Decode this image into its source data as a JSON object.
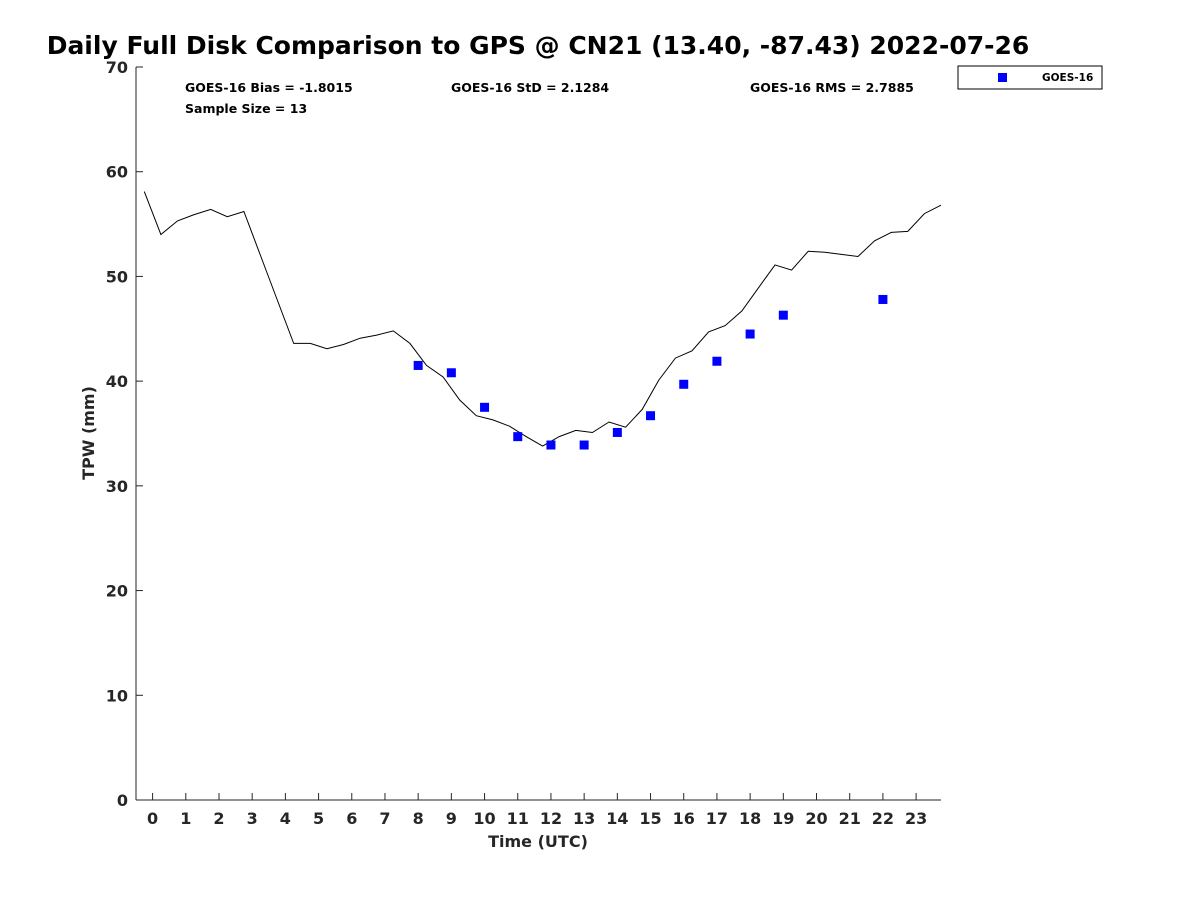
{
  "chart_data": {
    "type": "scatter",
    "title": "Daily Full Disk Comparison to GPS @ CN21 (13.40, -87.43) 2022-07-26",
    "xlabel": "Time (UTC)",
    "ylabel": "TPW (mm)",
    "xlim": [
      -0.5,
      23.75
    ],
    "ylim": [
      0,
      70
    ],
    "x_ticks": [
      0,
      1,
      2,
      3,
      4,
      5,
      6,
      7,
      8,
      9,
      10,
      11,
      12,
      13,
      14,
      15,
      16,
      17,
      18,
      19,
      20,
      21,
      22,
      23
    ],
    "y_ticks": [
      0,
      10,
      20,
      30,
      40,
      50,
      60,
      70
    ],
    "grid": false,
    "legend_position": "top-right, outside plot",
    "stats": {
      "bias": "GOES-16 Bias = -1.8015",
      "std": "GOES-16 StD = 2.1284",
      "rms": "GOES-16 RMS = 2.7885",
      "sample": "Sample Size = 13"
    },
    "series": [
      {
        "name": "GOES-16",
        "marker": "square",
        "color": "#0000ff",
        "x": [
          8,
          9,
          10,
          11,
          12,
          13,
          14,
          15,
          16,
          17,
          18,
          19,
          22
        ],
        "y": [
          41.5,
          40.8,
          37.5,
          34.7,
          33.9,
          33.9,
          35.1,
          36.7,
          39.7,
          41.9,
          44.5,
          46.3,
          47.8
        ]
      },
      {
        "line_type": "reference",
        "color": "#000000",
        "x": [
          -0.25,
          0.25,
          0.75,
          1.25,
          1.75,
          2.25,
          2.75,
          3.25,
          3.75,
          4.25,
          4.75,
          5.25,
          5.75,
          6.25,
          6.75,
          7.25,
          7.75,
          8.25,
          8.75,
          9.25,
          9.75,
          10.25,
          10.75,
          11.25,
          11.75,
          12.25,
          12.75,
          13.25,
          13.75,
          14.25,
          14.75,
          15.25,
          15.75,
          16.25,
          16.75,
          17.25,
          17.75,
          18.25,
          18.75,
          19.25,
          19.75,
          20.25,
          20.75,
          21.25,
          21.75,
          22.25,
          22.75,
          23.25,
          23.75
        ],
        "y": [
          58.1,
          54.0,
          55.3,
          55.9,
          56.4,
          55.7,
          56.2,
          52.0,
          47.8,
          43.6,
          43.6,
          43.1,
          43.5,
          44.1,
          44.4,
          44.8,
          43.6,
          41.5,
          40.4,
          38.2,
          36.7,
          36.3,
          35.7,
          34.7,
          33.8,
          34.7,
          35.3,
          35.1,
          36.1,
          35.6,
          37.3,
          40.1,
          42.2,
          42.9,
          44.7,
          45.3,
          46.7,
          48.9,
          51.1,
          50.6,
          52.4,
          52.3,
          52.1,
          51.9,
          53.4,
          54.2,
          54.3,
          56.0,
          56.8
        ]
      }
    ]
  },
  "colors": {
    "marker": "#0000ff",
    "line": "#000000",
    "axis": "#262626"
  }
}
